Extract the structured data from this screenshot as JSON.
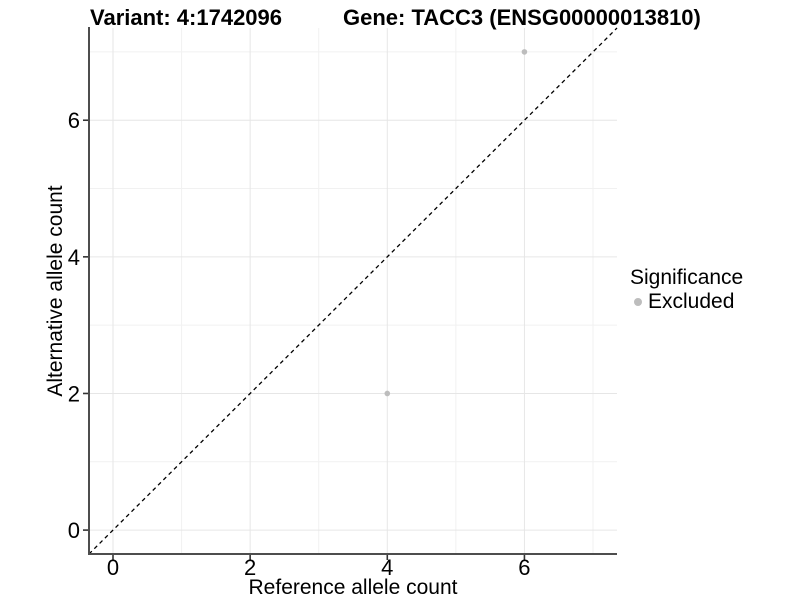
{
  "header": {
    "variant_title": "Variant: 4:1742096",
    "gene_title": "Gene: TACC3 (ENSG00000013810)"
  },
  "chart_data": {
    "type": "scatter",
    "title": "Variant: 4:1742096   Gene: TACC3 (ENSG00000013810)",
    "xlabel": "Reference allele count",
    "ylabel": "Alternative allele count",
    "xlim": [
      -0.35,
      7.35
    ],
    "ylim": [
      -0.35,
      7.35
    ],
    "x_ticks": [
      0,
      2,
      4,
      6
    ],
    "y_ticks": [
      0,
      2,
      4,
      6
    ],
    "x_minor_ticks": [
      1,
      3,
      5,
      7
    ],
    "y_minor_ticks": [
      1,
      3,
      5,
      7
    ],
    "grid": true,
    "series": [
      {
        "name": "Excluded",
        "color": "#bdbdbd",
        "points": [
          {
            "x": 4,
            "y": 2
          },
          {
            "x": 6,
            "y": 7
          }
        ]
      }
    ],
    "reference_line": {
      "type": "abline",
      "slope": 1,
      "intercept": 0,
      "style": "dashed",
      "color": "#000000"
    },
    "legend": {
      "title": "Significance",
      "position": "right",
      "entries": [
        {
          "label": "Excluded",
          "color": "#bdbdbd"
        }
      ]
    }
  },
  "colors": {
    "background": "#ffffff",
    "grid_major": "#e6e6e6",
    "grid_minor": "#f1f1f1",
    "axis_line": "#4d4d4d",
    "tick_mark": "#333333",
    "text": "#000000",
    "excluded_point": "#bdbdbd"
  }
}
